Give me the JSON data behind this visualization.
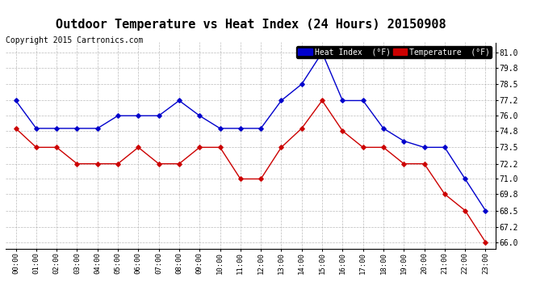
{
  "title": "Outdoor Temperature vs Heat Index (24 Hours) 20150908",
  "copyright": "Copyright 2015 Cartronics.com",
  "x_labels": [
    "00:00",
    "01:00",
    "02:00",
    "03:00",
    "04:00",
    "05:00",
    "06:00",
    "07:00",
    "08:00",
    "09:00",
    "10:00",
    "11:00",
    "12:00",
    "13:00",
    "14:00",
    "15:00",
    "16:00",
    "17:00",
    "18:00",
    "19:00",
    "20:00",
    "21:00",
    "22:00",
    "23:00"
  ],
  "heat_index": [
    77.2,
    75.0,
    75.0,
    75.0,
    75.0,
    76.0,
    76.0,
    76.0,
    77.2,
    76.0,
    75.0,
    75.0,
    75.0,
    77.2,
    78.5,
    81.0,
    77.2,
    77.2,
    75.0,
    74.0,
    73.5,
    73.5,
    71.0,
    68.5
  ],
  "temperature": [
    75.0,
    73.5,
    73.5,
    72.2,
    72.2,
    72.2,
    73.5,
    72.2,
    72.2,
    73.5,
    73.5,
    71.0,
    71.0,
    73.5,
    75.0,
    77.2,
    74.8,
    73.5,
    73.5,
    72.2,
    72.2,
    69.8,
    68.5,
    66.0
  ],
  "heat_index_color": "#0000cc",
  "temp_color": "#cc0000",
  "bg_color": "#ffffff",
  "grid_color": "#aaaaaa",
  "ylim_min": 65.5,
  "ylim_max": 81.8,
  "yticks": [
    66.0,
    67.2,
    68.5,
    69.8,
    71.0,
    72.2,
    73.5,
    74.8,
    76.0,
    77.2,
    78.5,
    79.8,
    81.0
  ],
  "title_fontsize": 11,
  "copyright_fontsize": 7,
  "legend_heat_label": "Heat Index  (°F)",
  "legend_temp_label": "Temperature  (°F)"
}
